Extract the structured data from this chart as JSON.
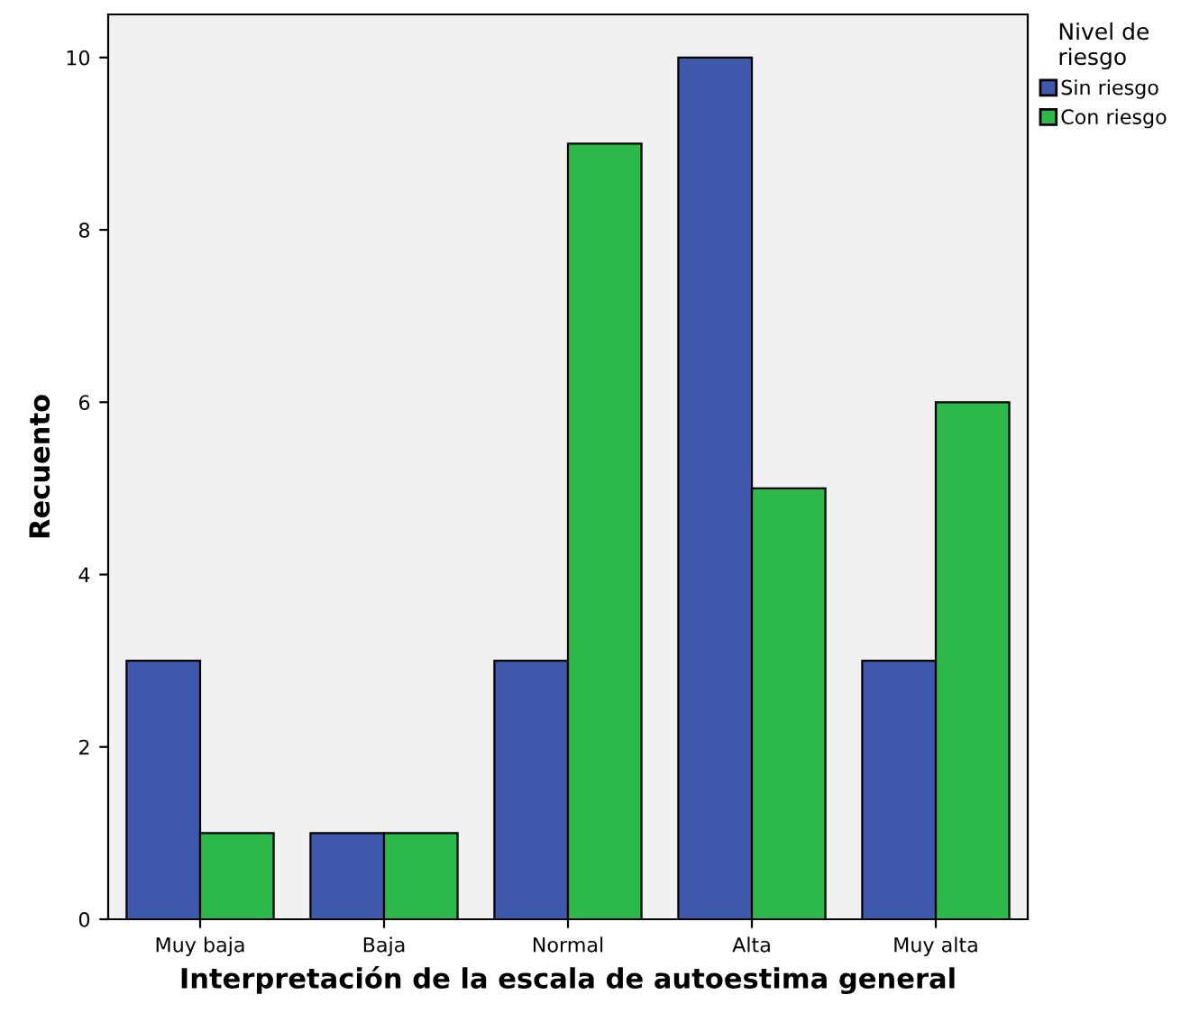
{
  "chart_data": {
    "type": "bar",
    "xlabel": "Interpretación de la escala de autoestima general",
    "ylabel": "Recuento",
    "legend_title": "Nivel de\nriesgo",
    "categories": [
      "Muy baja",
      "Baja",
      "Normal",
      "Alta",
      "Muy alta"
    ],
    "series": [
      {
        "name": "Sin riesgo",
        "color": "#3e58ac",
        "values": [
          3,
          1,
          3,
          10,
          3
        ]
      },
      {
        "name": "Con riesgo",
        "color": "#2db84a",
        "values": [
          1,
          1,
          9,
          5,
          6
        ]
      }
    ],
    "ylim": [
      0,
      10.5
    ],
    "yticks": [
      0,
      2,
      4,
      6,
      8,
      10
    ],
    "grid": false,
    "legend": "top right"
  }
}
